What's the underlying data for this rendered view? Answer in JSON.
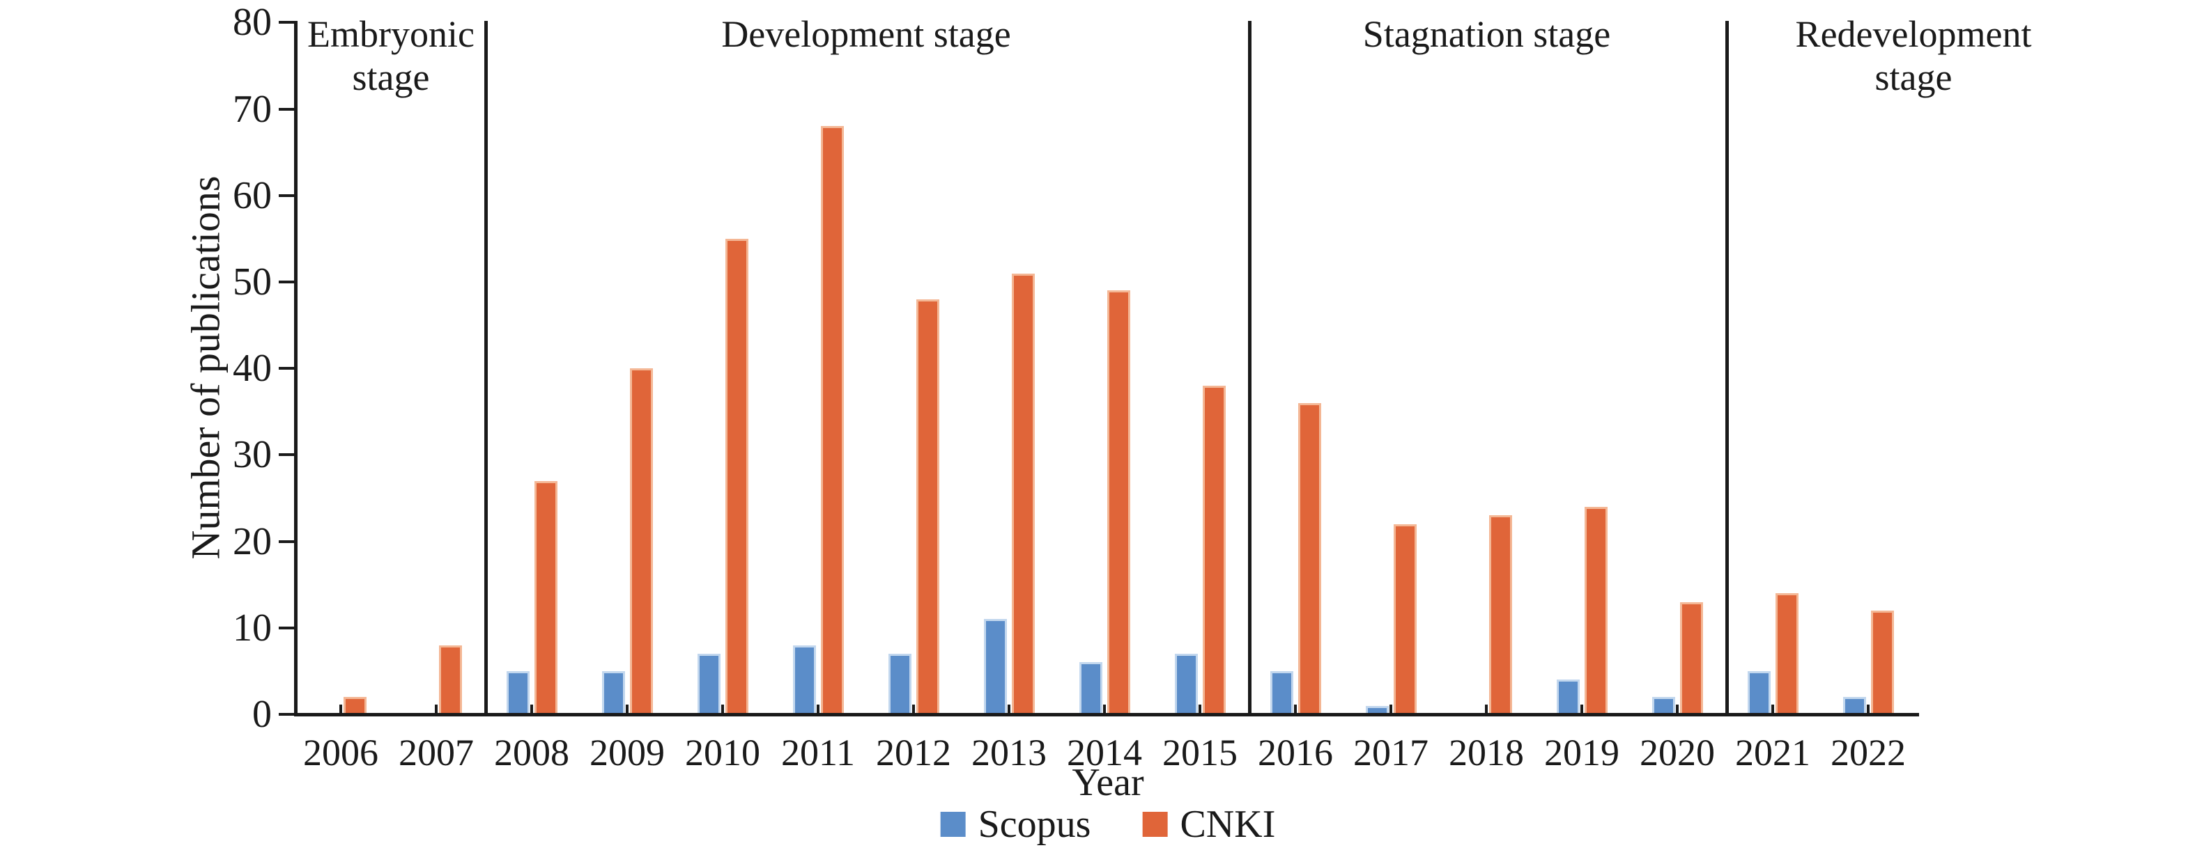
{
  "chart_data": {
    "type": "bar",
    "title": "",
    "categories": [
      "2006",
      "2007",
      "2008",
      "2009",
      "2010",
      "2011",
      "2012",
      "2013",
      "2014",
      "2015",
      "2016",
      "2017",
      "2018",
      "2019",
      "2020",
      "2021",
      "2022"
    ],
    "series": [
      {
        "name": "Scopus",
        "color": "#5b8dc9",
        "edge_color": "#c2d7ee",
        "values": [
          0,
          0,
          5,
          5,
          7,
          8,
          7,
          11,
          6,
          7,
          5,
          1,
          0,
          4,
          2,
          5,
          2
        ]
      },
      {
        "name": "CNKI",
        "color": "#e06539",
        "edge_color": "#f4b795",
        "values": [
          2,
          8,
          27,
          40,
          55,
          68,
          48,
          51,
          49,
          38,
          36,
          22,
          23,
          24,
          13,
          14,
          12
        ]
      }
    ],
    "xlabel": "Year",
    "ylabel": "Number of publications",
    "ylim": [
      0,
      80
    ],
    "ytick_step": 10,
    "grid": false,
    "legend_position": "bottom-center",
    "axis_color": "#1a1a1a",
    "stages": [
      {
        "label": "Embryonic stage",
        "start": "2006",
        "end": "2007"
      },
      {
        "label": "Development stage",
        "start": "2008",
        "end": "2015"
      },
      {
        "label": "Stagnation stage",
        "start": "2016",
        "end": "2020"
      },
      {
        "label": "Redevelopment stage",
        "start": "2021",
        "end": "2022"
      }
    ]
  }
}
